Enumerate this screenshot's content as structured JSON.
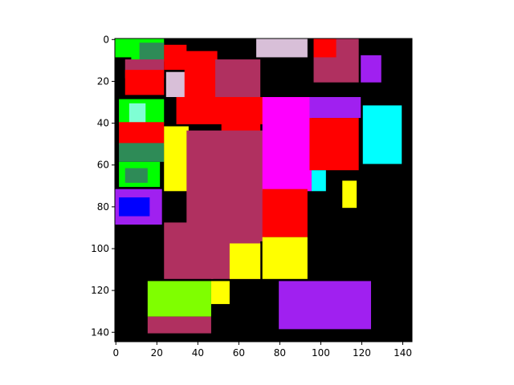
{
  "chart_data": {
    "type": "heatmap",
    "x_ticks": [
      0,
      20,
      40,
      60,
      80,
      100,
      120,
      140
    ],
    "y_ticks": [
      0,
      20,
      40,
      60,
      80,
      100,
      120,
      140
    ],
    "xlim": [
      -0.5,
      144.5
    ],
    "ylim": [
      144.5,
      -0.5
    ],
    "y_inverted": true,
    "grid": false,
    "background_color": "#000000",
    "class_colors": {
      "green": "#00ff00",
      "red": "#ff0000",
      "maroon": "#b03060",
      "yellow": "#ffff00",
      "magenta": "#ff00ff",
      "cyan": "#00ffff",
      "purple": "#a020f0",
      "blue": "#0000ff",
      "lime": "#7fff00",
      "thistle": "#d8bfd8",
      "seagreen": "#2e8b57",
      "aquamarine": "#7fffd4",
      "black": "#000000"
    },
    "regions": [
      {
        "cls": "green",
        "x": [
          0,
          8
        ],
        "y": [
          0,
          8
        ]
      },
      {
        "cls": "green",
        "x": [
          8,
          23
        ],
        "y": [
          0,
          10
        ]
      },
      {
        "cls": "seagreen",
        "x": [
          12,
          23
        ],
        "y": [
          2,
          10
        ]
      },
      {
        "cls": "maroon",
        "x": [
          5,
          23
        ],
        "y": [
          10,
          18
        ]
      },
      {
        "cls": "red",
        "x": [
          5,
          23
        ],
        "y": [
          15,
          26
        ]
      },
      {
        "cls": "green",
        "x": [
          2,
          23
        ],
        "y": [
          29,
          40
        ]
      },
      {
        "cls": "aquamarine",
        "x": [
          7,
          14
        ],
        "y": [
          31,
          42
        ]
      },
      {
        "cls": "red",
        "x": [
          2,
          23
        ],
        "y": [
          40,
          50
        ]
      },
      {
        "cls": "seagreen",
        "x": [
          2,
          23
        ],
        "y": [
          50,
          58
        ]
      },
      {
        "cls": "green",
        "x": [
          2,
          21
        ],
        "y": [
          59,
          70
        ]
      },
      {
        "cls": "seagreen",
        "x": [
          5,
          15
        ],
        "y": [
          62,
          68
        ]
      },
      {
        "cls": "purple",
        "x": [
          0,
          22
        ],
        "y": [
          72,
          88
        ]
      },
      {
        "cls": "blue",
        "x": [
          2,
          16
        ],
        "y": [
          76,
          84
        ]
      },
      {
        "cls": "red",
        "x": [
          24,
          34
        ],
        "y": [
          3,
          14
        ]
      },
      {
        "cls": "thistle",
        "x": [
          25,
          34
        ],
        "y": [
          16,
          27
        ]
      },
      {
        "cls": "red",
        "x": [
          34,
          49
        ],
        "y": [
          6,
          30
        ]
      },
      {
        "cls": "maroon",
        "x": [
          49,
          70
        ],
        "y": [
          10,
          28
        ]
      },
      {
        "cls": "red",
        "x": [
          30,
          72
        ],
        "y": [
          28,
          40
        ]
      },
      {
        "cls": "red",
        "x": [
          52,
          70
        ],
        "y": [
          40,
          52
        ]
      },
      {
        "cls": "yellow",
        "x": [
          24,
          35
        ],
        "y": [
          42,
          72
        ]
      },
      {
        "cls": "maroon",
        "x": [
          35,
          72
        ],
        "y": [
          44,
          96
        ]
      },
      {
        "cls": "maroon",
        "x": [
          24,
          47
        ],
        "y": [
          88,
          114
        ]
      },
      {
        "cls": "maroon",
        "x": [
          47,
          70
        ],
        "y": [
          96,
          114
        ]
      },
      {
        "cls": "yellow",
        "x": [
          56,
          70
        ],
        "y": [
          98,
          114
        ]
      },
      {
        "cls": "magenta",
        "x": [
          72,
          95
        ],
        "y": [
          28,
          72
        ]
      },
      {
        "cls": "red",
        "x": [
          72,
          93
        ],
        "y": [
          72,
          94
        ]
      },
      {
        "cls": "thistle",
        "x": [
          69,
          93
        ],
        "y": [
          0,
          8
        ]
      },
      {
        "cls": "maroon",
        "x": [
          97,
          118
        ],
        "y": [
          0,
          20
        ]
      },
      {
        "cls": "red",
        "x": [
          97,
          107
        ],
        "y": [
          0,
          8
        ]
      },
      {
        "cls": "purple",
        "x": [
          120,
          129
        ],
        "y": [
          8,
          20
        ]
      },
      {
        "cls": "purple",
        "x": [
          95,
          119
        ],
        "y": [
          28,
          37
        ]
      },
      {
        "cls": "red",
        "x": [
          95,
          118
        ],
        "y": [
          38,
          62
        ]
      },
      {
        "cls": "cyan",
        "x": [
          121,
          139
        ],
        "y": [
          32,
          59
        ]
      },
      {
        "cls": "cyan",
        "x": [
          96,
          102
        ],
        "y": [
          63,
          72
        ]
      },
      {
        "cls": "yellow",
        "x": [
          111,
          117
        ],
        "y": [
          68,
          80
        ]
      },
      {
        "cls": "yellow",
        "x": [
          72,
          93
        ],
        "y": [
          95,
          114
        ]
      },
      {
        "cls": "lime",
        "x": [
          16,
          46
        ],
        "y": [
          116,
          132
        ]
      },
      {
        "cls": "yellow",
        "x": [
          47,
          55
        ],
        "y": [
          116,
          126
        ]
      },
      {
        "cls": "maroon",
        "x": [
          16,
          46
        ],
        "y": [
          133,
          140
        ]
      },
      {
        "cls": "purple",
        "x": [
          80,
          124
        ],
        "y": [
          116,
          138
        ]
      }
    ]
  }
}
